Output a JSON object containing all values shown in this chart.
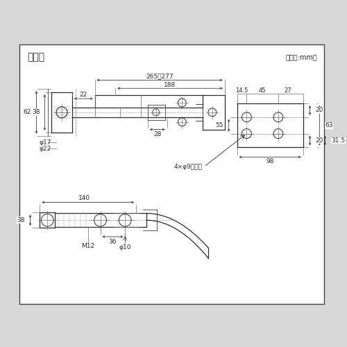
{
  "bg_outer": "#d8d8d8",
  "bg_panel": "#ffffff",
  "line_color": "#2a2a2a",
  "dim_color": "#2a2a2a",
  "title": "寸法図",
  "unit_label": "（単位:mm）",
  "title_fontsize": 10,
  "label_fontsize": 7,
  "dim_fontsize": 6.5,
  "annotations": {
    "top_span": "265＾277",
    "mid_span": "188",
    "left_h1": "62",
    "left_h2": "38",
    "left_h3": "22",
    "phi17": "φ17",
    "phi22": "φ22",
    "dim28": "28",
    "right_dims": [
      "14.5",
      "45",
      "27"
    ],
    "right_v1": "20",
    "right_v2": "55",
    "right_v3": "63",
    "right_v4": "20",
    "right_v5": "31.5",
    "right_h": "98",
    "label4x": "4×φ9穴、ニ",
    "bottom_h1": "140",
    "bottom_h2": "36",
    "bottom_v1": "38",
    "bottom_m12": "M12",
    "bottom_phi10": "φ10"
  }
}
